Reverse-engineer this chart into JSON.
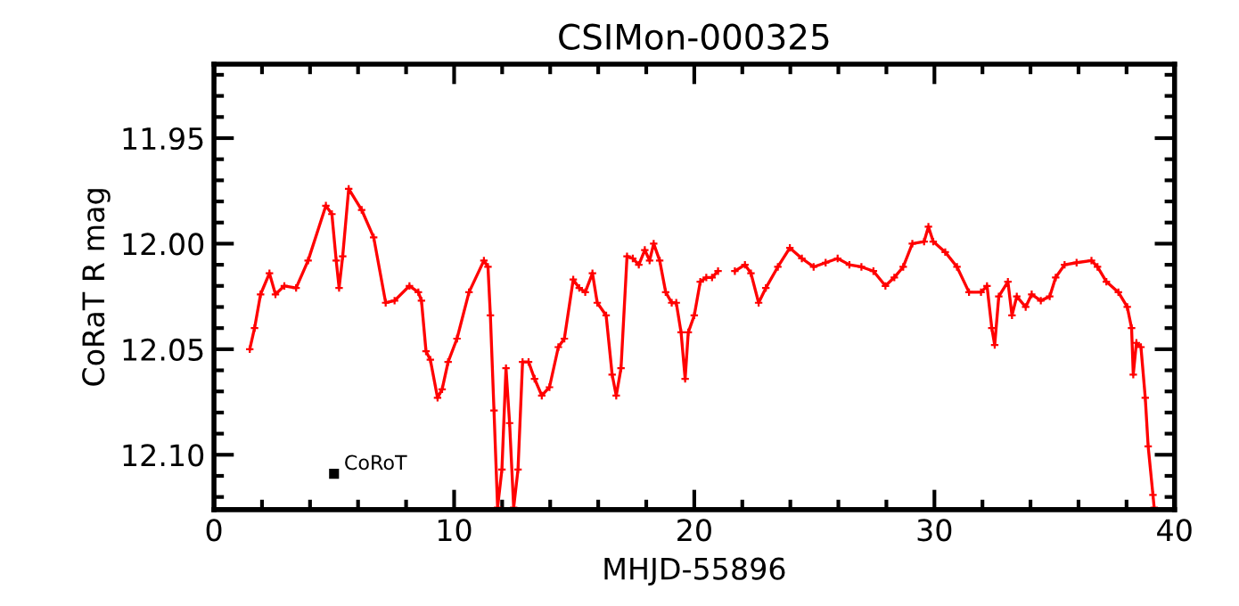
{
  "chart_data": {
    "type": "line",
    "title": "CSIMon-000325",
    "xlabel": "MHJD-55896",
    "ylabel": "CoRaT R mag",
    "x": [
      1.49,
      1.69,
      1.94,
      2.31,
      2.56,
      2.93,
      3.42,
      3.92,
      4.66,
      4.91,
      5.09,
      5.21,
      5.36,
      5.61,
      6.15,
      6.65,
      7.15,
      7.52,
      8.14,
      8.51,
      8.64,
      8.83,
      9.01,
      9.31,
      9.5,
      9.75,
      10.12,
      10.62,
      11.24,
      11.41,
      11.51,
      11.66,
      11.81,
      11.99,
      12.16,
      12.31,
      12.48,
      12.66,
      12.85,
      13.1,
      13.35,
      13.65,
      13.97,
      14.34,
      14.59,
      14.96,
      15.21,
      15.46,
      15.76,
      15.96,
      16.33,
      16.58,
      16.75,
      16.95,
      17.2,
      17.44,
      17.69,
      17.94,
      18.14,
      18.31,
      18.56,
      18.81,
      19.06,
      19.25,
      19.45,
      19.62,
      19.75,
      20.0,
      20.25,
      20.5,
      20.74,
      20.99,
      21.3,
      21.69,
      22.11,
      22.36,
      22.68,
      22.98,
      23.48,
      23.98,
      24.48,
      24.97,
      25.47,
      25.97,
      26.46,
      26.96,
      27.46,
      27.96,
      28.33,
      28.7,
      29.08,
      29.57,
      29.75,
      29.95,
      30.45,
      30.94,
      31.44,
      31.94,
      32.19,
      32.39,
      32.51,
      32.68,
      33.06,
      33.23,
      33.43,
      33.8,
      34.05,
      34.43,
      34.8,
      35.05,
      35.42,
      35.92,
      36.54,
      36.79,
      37.16,
      37.66,
      38.03,
      38.21,
      38.28,
      38.41,
      38.6,
      38.78,
      38.9,
      39.1,
      39.15
    ],
    "series": [
      {
        "color": "#ff0000",
        "values": [
          12.05,
          12.04,
          12.024,
          12.014,
          12.024,
          12.02,
          12.021,
          12.008,
          11.982,
          11.986,
          12.008,
          12.021,
          12.006,
          11.974,
          11.984,
          11.997,
          12.028,
          12.027,
          12.02,
          12.023,
          12.027,
          12.051,
          12.055,
          12.073,
          12.069,
          12.056,
          12.045,
          12.023,
          12.008,
          12.011,
          12.034,
          12.079,
          12.125,
          12.107,
          12.059,
          12.085,
          12.125,
          12.107,
          12.056,
          12.056,
          12.064,
          12.072,
          12.068,
          12.049,
          12.045,
          12.017,
          12.021,
          12.023,
          12.014,
          12.028,
          12.034,
          12.062,
          12.072,
          12.059,
          12.006,
          12.007,
          12.01,
          12.003,
          12.008,
          12.0,
          12.008,
          12.023,
          12.028,
          12.028,
          12.042,
          12.064,
          12.042,
          12.034,
          12.018,
          12.016,
          12.016,
          12.013,
          null,
          12.013,
          12.01,
          12.014,
          12.028,
          12.021,
          12.011,
          12.002,
          12.007,
          12.011,
          12.009,
          12.007,
          12.01,
          12.011,
          12.013,
          12.02,
          12.016,
          12.011,
          12.0,
          11.999,
          11.992,
          11.999,
          12.004,
          12.011,
          12.023,
          12.023,
          12.02,
          12.04,
          12.048,
          12.025,
          12.018,
          12.034,
          12.025,
          12.03,
          12.024,
          12.027,
          12.025,
          12.016,
          12.01,
          12.009,
          12.008,
          12.011,
          12.018,
          12.023,
          12.03,
          12.04,
          12.062,
          12.047,
          12.049,
          12.073,
          12.096,
          12.119,
          12.125
        ]
      }
    ],
    "marker": "cross",
    "line_style": "solid",
    "xlim": [
      0,
      40
    ],
    "xticks": [
      0,
      {
        "value": 2,
        "label": null
      },
      {
        "value": 4,
        "label": null
      },
      {
        "value": 6,
        "label": null
      },
      {
        "value": 8,
        "label": null
      },
      10,
      {
        "value": 12,
        "label": null
      },
      {
        "value": 14,
        "label": null
      },
      {
        "value": 16,
        "label": null
      },
      {
        "value": 18,
        "label": null
      },
      20,
      {
        "value": 22,
        "label": null
      },
      {
        "value": 24,
        "label": null
      },
      {
        "value": 26,
        "label": null
      },
      {
        "value": 28,
        "label": null
      },
      30,
      {
        "value": 32,
        "label": null
      },
      {
        "value": 34,
        "label": null
      },
      {
        "value": 36,
        "label": null
      },
      {
        "value": 38,
        "label": null
      },
      40
    ],
    "ylim": [
      12.126,
      11.915
    ],
    "yticks": [
      {
        "value": 11.92,
        "label": null
      },
      {
        "value": 11.93,
        "label": null
      },
      {
        "value": 11.94,
        "label": null
      },
      {
        "value": 11.95,
        "label": "11.95"
      },
      {
        "value": 11.96,
        "label": null
      },
      {
        "value": 11.97,
        "label": null
      },
      {
        "value": 11.98,
        "label": null
      },
      {
        "value": 11.99,
        "label": null
      },
      {
        "value": 12.0,
        "label": "12.00"
      },
      {
        "value": 12.01,
        "label": null
      },
      {
        "value": 12.02,
        "label": null
      },
      {
        "value": 12.03,
        "label": null
      },
      {
        "value": 12.04,
        "label": null
      },
      {
        "value": 12.05,
        "label": "12.05"
      },
      {
        "value": 12.06,
        "label": null
      },
      {
        "value": 12.07,
        "label": null
      },
      {
        "value": 12.08,
        "label": null
      },
      {
        "value": 12.09,
        "label": null
      },
      {
        "value": 12.1,
        "label": "12.10"
      },
      {
        "value": 12.11,
        "label": null
      },
      {
        "value": 12.12,
        "label": null
      }
    ],
    "annotations": [
      {
        "text": "CoRoT",
        "x": 5.0,
        "y": 12.109
      }
    ]
  }
}
